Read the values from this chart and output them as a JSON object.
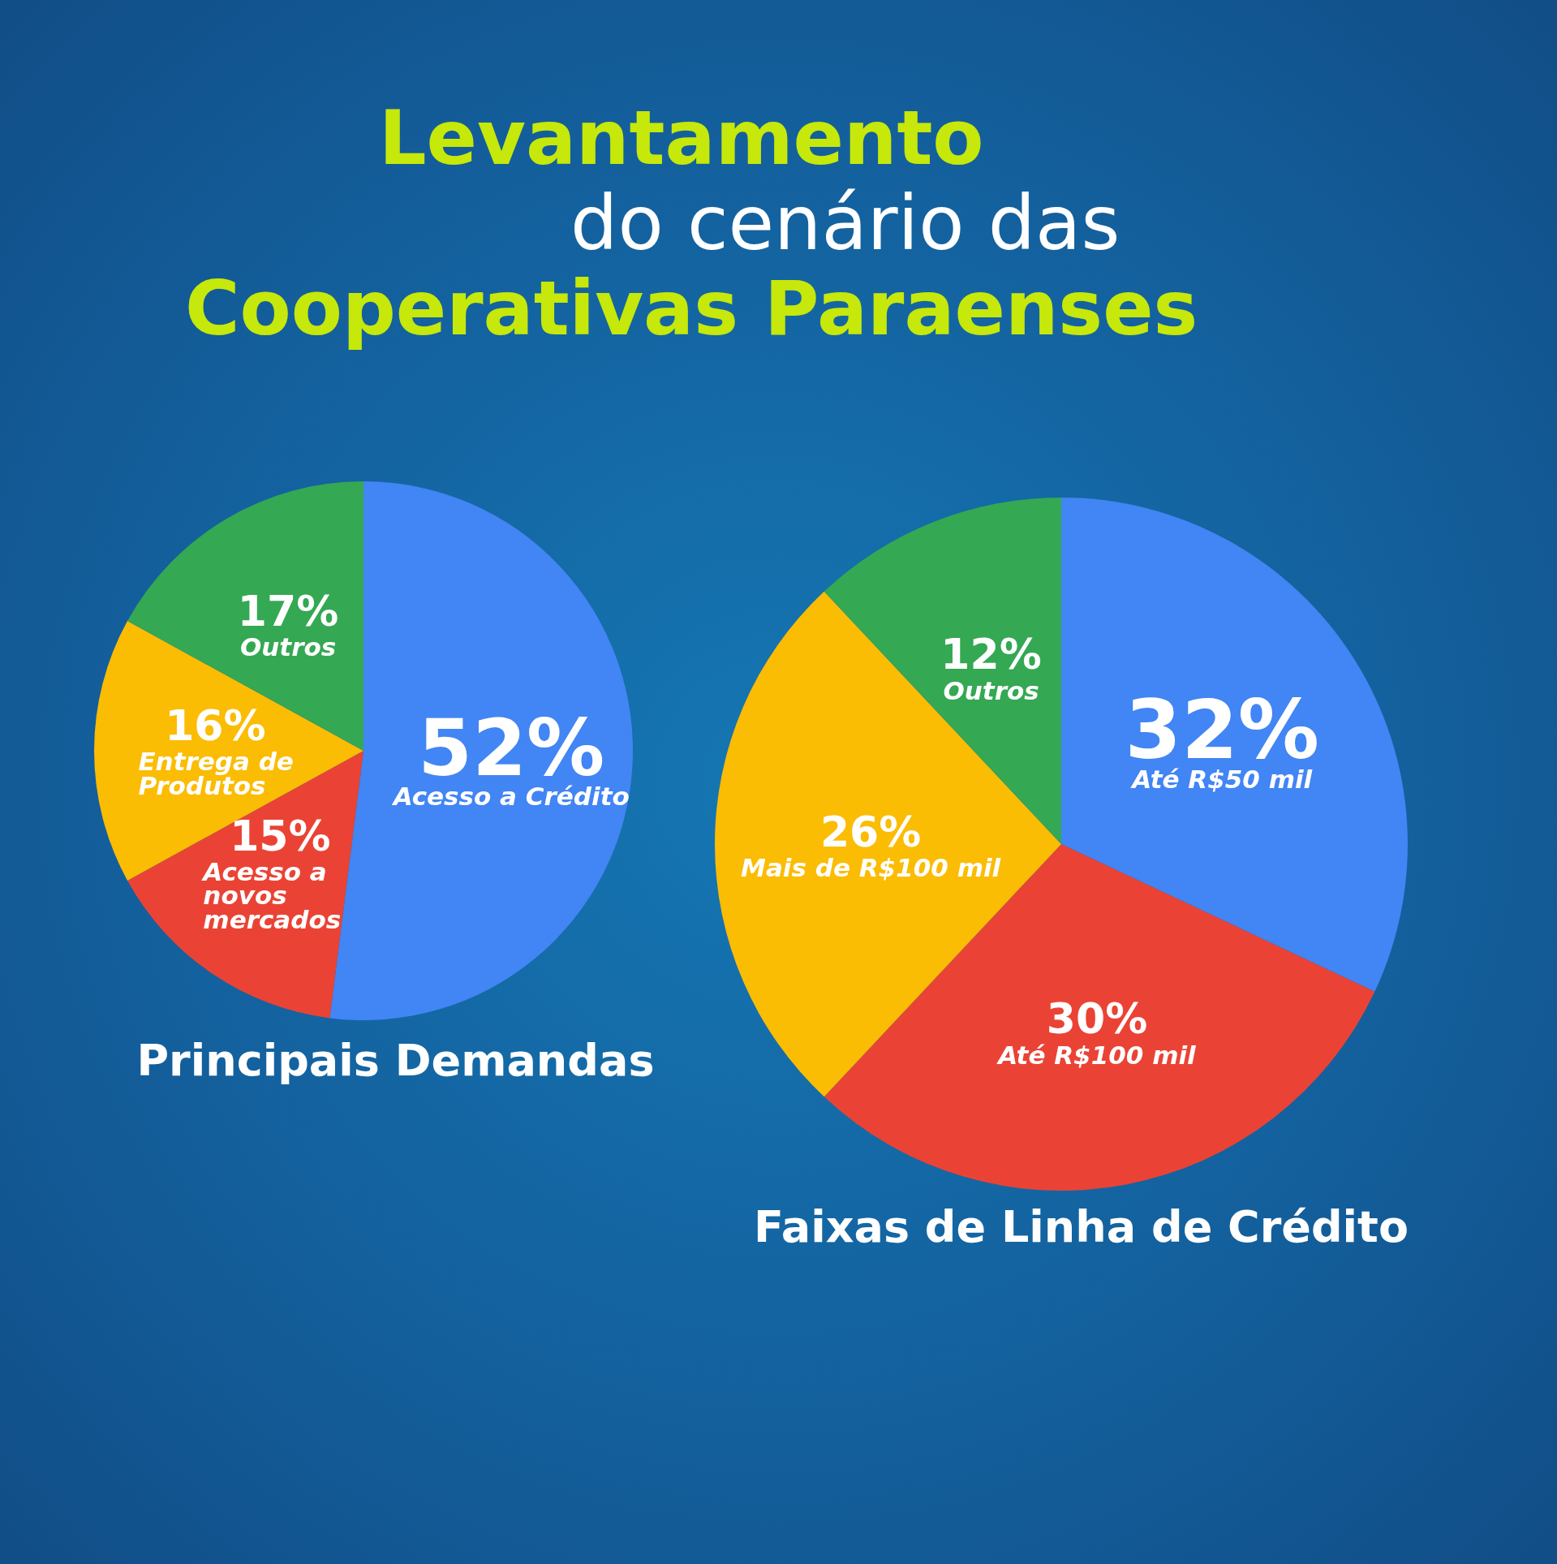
{
  "chart_data": [
    {
      "type": "pie",
      "title": "Levantamento\ndo cenário das\nCooperativas Paraenses",
      "subtitle": "Principais Demandas",
      "categories": [
        "Acesso a Crédito",
        "Acesso a novos mercados",
        "Entrega de Produtos",
        "Outros"
      ],
      "values": [
        52,
        15,
        16,
        17
      ],
      "colors": [
        "#4285f4",
        "#ea4335",
        "#fbbc04",
        "#34a853"
      ],
      "value_labels": [
        "52%",
        "15%",
        "16%",
        "17%"
      ],
      "legend": false
    },
    {
      "type": "pie",
      "subtitle": "Faixas de Linha de Crédito",
      "categories": [
        "Até R$50 mil",
        "Até R$100 mil",
        "Mais de R$100 mil",
        "Outros"
      ],
      "values": [
        32,
        30,
        26,
        12
      ],
      "colors": [
        "#4285f4",
        "#ea4335",
        "#fbbc04",
        "#34a853"
      ],
      "value_labels": [
        "32%",
        "30%",
        "26%",
        "12%"
      ],
      "legend": false
    }
  ]
}
